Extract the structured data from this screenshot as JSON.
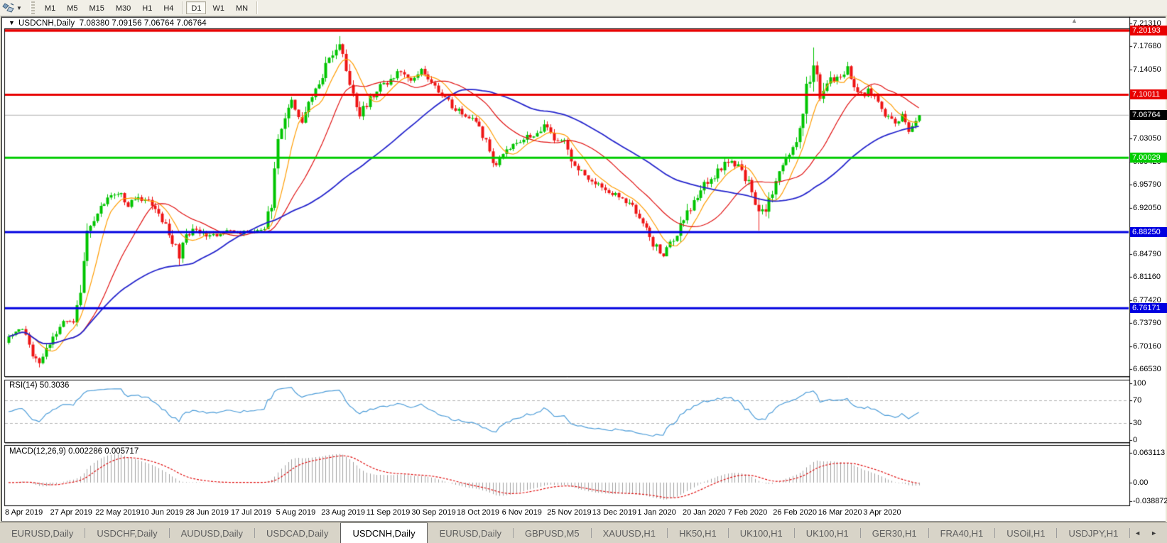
{
  "toolbar": {
    "timeframes": [
      "M1",
      "M5",
      "M15",
      "M30",
      "H1",
      "H4",
      "D1",
      "W1",
      "MN"
    ],
    "active_timeframe": "D1"
  },
  "chart_header": {
    "symbol": "USDCNH,Daily",
    "ohlc": "7.08380 7.09156 7.06764 7.06764"
  },
  "chart_data": {
    "type": "candlestick",
    "title": "USDCNH,Daily",
    "bars": 268,
    "ylim": [
      6.6653,
      7.2131
    ],
    "y_ticks": [
      7.2131,
      7.1768,
      7.1405,
      7.0305,
      6.9942,
      6.9579,
      6.9205,
      6.8479,
      6.8116,
      6.7742,
      6.7379,
      6.7016,
      6.6653
    ],
    "x_tick_labels": [
      "8 Apr 2019",
      "27 Apr 2019",
      "22 May 2019",
      "10 Jun 2019",
      "28 Jun 2019",
      "17 Jul 2019",
      "5 Aug 2019",
      "23 Aug 2019",
      "11 Sep 2019",
      "30 Sep 2019",
      "18 Oct 2019",
      "6 Nov 2019",
      "25 Nov 2019",
      "13 Dec 2019",
      "1 Jan 2020",
      "20 Jan 2020",
      "7 Feb 2020",
      "26 Feb 2020",
      "16 Mar 2020",
      "3 Apr 2020"
    ],
    "horizontal_lines": [
      {
        "value": 7.20193,
        "color": "#E80000",
        "width": 3,
        "label_bg": "#E80000",
        "name": "resistance-upper"
      },
      {
        "value": 7.10011,
        "color": "#E80000",
        "width": 3,
        "label_bg": "#E80000",
        "name": "resistance"
      },
      {
        "value": 7.06764,
        "color": "#B4B4B4",
        "width": 1,
        "label_bg": "#000000",
        "name": "current-price"
      },
      {
        "value": 7.00029,
        "color": "#00CC00",
        "width": 3,
        "label_bg": "#00CC00",
        "name": "support-green"
      },
      {
        "value": 6.8825,
        "color": "#0000E0",
        "width": 3,
        "label_bg": "#0000E0",
        "name": "support-blue-upper"
      },
      {
        "value": 6.76171,
        "color": "#0000E0",
        "width": 3,
        "label_bg": "#0000E0",
        "name": "support-blue-lower"
      }
    ],
    "colors": {
      "up": "#00C400",
      "down": "#EE1414",
      "background": "#FFFFFF",
      "border": "#000000"
    },
    "moving_averages": [
      {
        "name": "fast-ma",
        "period": 8,
        "color": "#FF9C00",
        "width": 1.2
      },
      {
        "name": "medium-ma",
        "period": 21,
        "color": "#E01010",
        "width": 1.2
      },
      {
        "name": "slow-ma",
        "period": 55,
        "color": "#2424CC",
        "width": 1.8
      }
    ],
    "candle_anchors": [
      [
        0,
        6.715,
        0.008
      ],
      [
        4,
        6.728,
        0.008
      ],
      [
        7,
        6.69,
        0.01
      ],
      [
        9,
        6.671,
        0.009
      ],
      [
        12,
        6.706,
        0.01
      ],
      [
        16,
        6.742,
        0.009
      ],
      [
        19,
        6.737,
        0.007
      ],
      [
        21,
        6.79,
        0.018
      ],
      [
        23,
        6.882,
        0.022
      ],
      [
        26,
        6.916,
        0.012
      ],
      [
        29,
        6.933,
        0.01
      ],
      [
        32,
        6.947,
        0.009
      ],
      [
        35,
        6.926,
        0.009
      ],
      [
        38,
        6.94,
        0.009
      ],
      [
        41,
        6.93,
        0.009
      ],
      [
        45,
        6.903,
        0.01
      ],
      [
        48,
        6.868,
        0.013
      ],
      [
        50,
        6.845,
        0.014
      ],
      [
        52,
        6.884,
        0.013
      ],
      [
        56,
        6.881,
        0.008
      ],
      [
        60,
        6.876,
        0.007
      ],
      [
        64,
        6.884,
        0.006
      ],
      [
        68,
        6.881,
        0.005
      ],
      [
        72,
        6.885,
        0.005
      ],
      [
        75,
        6.89,
        0.007
      ],
      [
        77,
        6.925,
        0.025
      ],
      [
        79,
        7.02,
        0.03
      ],
      [
        81,
        7.065,
        0.025
      ],
      [
        83,
        7.09,
        0.016
      ],
      [
        86,
        7.062,
        0.013
      ],
      [
        89,
        7.098,
        0.013
      ],
      [
        92,
        7.132,
        0.015
      ],
      [
        95,
        7.168,
        0.014
      ],
      [
        97,
        7.178,
        0.012
      ],
      [
        100,
        7.122,
        0.016
      ],
      [
        103,
        7.068,
        0.014
      ],
      [
        106,
        7.096,
        0.012
      ],
      [
        109,
        7.112,
        0.01
      ],
      [
        112,
        7.122,
        0.01
      ],
      [
        115,
        7.138,
        0.01
      ],
      [
        118,
        7.122,
        0.009
      ],
      [
        121,
        7.137,
        0.01
      ],
      [
        124,
        7.117,
        0.009
      ],
      [
        127,
        7.102,
        0.008
      ],
      [
        130,
        7.082,
        0.008
      ],
      [
        134,
        7.067,
        0.008
      ],
      [
        137,
        7.056,
        0.008
      ],
      [
        140,
        7.025,
        0.009
      ],
      [
        142,
        6.988,
        0.012
      ],
      [
        144,
        6.998,
        0.01
      ],
      [
        147,
        7.015,
        0.009
      ],
      [
        150,
        7.028,
        0.008
      ],
      [
        154,
        7.038,
        0.008
      ],
      [
        157,
        7.052,
        0.014
      ],
      [
        160,
        7.032,
        0.01
      ],
      [
        163,
        7.028,
        0.009
      ],
      [
        165,
        6.988,
        0.016
      ],
      [
        168,
        6.976,
        0.01
      ],
      [
        172,
        6.961,
        0.009
      ],
      [
        176,
        6.947,
        0.009
      ],
      [
        180,
        6.936,
        0.008
      ],
      [
        183,
        6.922,
        0.009
      ],
      [
        186,
        6.9,
        0.009
      ],
      [
        189,
        6.862,
        0.011
      ],
      [
        192,
        6.85,
        0.011
      ],
      [
        195,
        6.872,
        0.014
      ],
      [
        198,
        6.905,
        0.016
      ],
      [
        201,
        6.932,
        0.014
      ],
      [
        204,
        6.956,
        0.012
      ],
      [
        208,
        6.978,
        0.01
      ],
      [
        211,
        6.998,
        0.011
      ],
      [
        214,
        6.985,
        0.01
      ],
      [
        217,
        6.96,
        0.012
      ],
      [
        220,
        6.908,
        0.018
      ],
      [
        222,
        6.918,
        0.016
      ],
      [
        225,
        6.962,
        0.016
      ],
      [
        227,
        6.992,
        0.013
      ],
      [
        230,
        7.012,
        0.012
      ],
      [
        232,
        7.045,
        0.022
      ],
      [
        234,
        7.11,
        0.03
      ],
      [
        236,
        7.155,
        0.024
      ],
      [
        238,
        7.105,
        0.022
      ],
      [
        240,
        7.125,
        0.016
      ],
      [
        242,
        7.118,
        0.014
      ],
      [
        244,
        7.132,
        0.013
      ],
      [
        246,
        7.14,
        0.012
      ],
      [
        248,
        7.118,
        0.012
      ],
      [
        250,
        7.098,
        0.012
      ],
      [
        252,
        7.11,
        0.011
      ],
      [
        254,
        7.095,
        0.011
      ],
      [
        256,
        7.078,
        0.01
      ],
      [
        258,
        7.062,
        0.009
      ],
      [
        260,
        7.052,
        0.009
      ],
      [
        262,
        7.068,
        0.009
      ],
      [
        264,
        7.044,
        0.008
      ],
      [
        266,
        7.06,
        0.008
      ],
      [
        267,
        7.068,
        0.005
      ]
    ],
    "last_close": 7.06764,
    "rsi": {
      "label": "RSI(14)",
      "value": "50.3036",
      "period": 14,
      "ticks": [
        100,
        70,
        30,
        0
      ],
      "levels": [
        70,
        30
      ],
      "color": "#4C9CD8",
      "range": [
        0,
        100
      ]
    },
    "macd": {
      "label": "MACD(12,26,9)",
      "values": "0.002286 0.005717",
      "fast": 12,
      "slow": 26,
      "signal": 9,
      "ticks": [
        "0.063113",
        "0.00",
        "-0.038872"
      ],
      "tick_values": [
        0.063113,
        0.0,
        -0.038872
      ],
      "range": [
        -0.045,
        0.0745
      ],
      "histogram_color": "#A0A0A0",
      "signal_color": "#E01010"
    }
  },
  "tabs": {
    "items": [
      "EURUSD,Daily",
      "USDCHF,Daily",
      "AUDUSD,Daily",
      "USDCAD,Daily",
      "USDCNH,Daily",
      "EURUSD,Daily",
      "GBPUSD,M5",
      "XAUUSD,H1",
      "HK50,H1",
      "UK100,H1",
      "UK100,H1",
      "GER30,H1",
      "FRA40,H1",
      "USOil,H1",
      "USDJPY,H1"
    ],
    "active_index": 4,
    "scroll_left": "◄",
    "scroll_right": "►"
  },
  "misc": {
    "scroll_marker": "▲",
    "header_caret": "▼"
  }
}
